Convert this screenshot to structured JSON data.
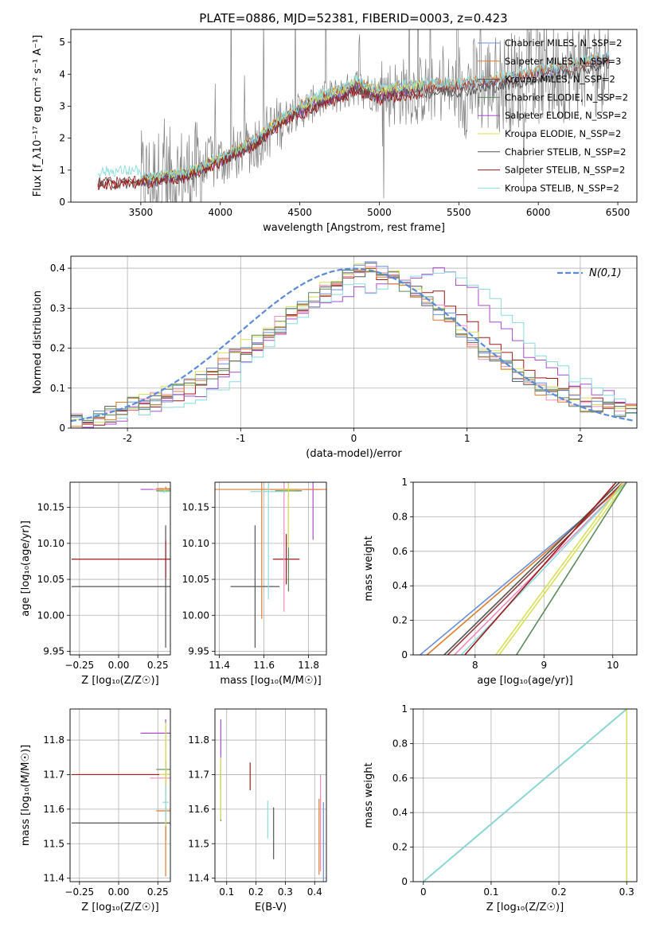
{
  "figure_title": "PLATE=0886, MJD=52381, FIBERID=0003, z=0.423",
  "colors": {
    "chabrier_miles": "#6a8fd8",
    "salpeter_miles": "#e07b2c",
    "kroupa_miles": "#8b3e3e",
    "chabrier_elodie": "#5a8a5a",
    "salpeter_elodie": "#a64dcc",
    "kroupa_elodie": "#d8e05a",
    "chabrier_stelib": "#555555",
    "salpeter_stelib": "#a01818",
    "kroupa_stelib": "#88dcdc",
    "pink": "#f08ac0",
    "data_gray": "#808080",
    "gaussian": "#5b8bd6"
  },
  "chart_data": [
    {
      "id": "spectrum",
      "type": "line",
      "xlabel": "wavelength [Angstrom, rest frame]",
      "ylabel": "Flux [f_λ10⁻¹⁷ erg cm⁻² s⁻¹ A⁻¹]",
      "xlim": [
        3060,
        6620
      ],
      "ylim": [
        0,
        5.4
      ],
      "xticks": [
        3500,
        4000,
        4500,
        5000,
        5500,
        6000,
        6500
      ],
      "yticks": [
        0,
        1,
        2,
        3,
        4,
        5
      ],
      "legend_position": "upper right",
      "legend": [
        "Chabrier MILES, N_SSP=2",
        "Salpeter MILES, N_SSP=3",
        "Kroupa MILES, N_SSP=2",
        "Chabrier ELODIE, N_SSP=2",
        "Salpeter ELODIE, N_SSP=2",
        "Kroupa ELODIE, N_SSP=2",
        "Chabrier STELIB, N_SSP=2",
        "Salpeter STELIB, N_SSP=2",
        "Kroupa STELIB, N_SSP=2"
      ],
      "model_trend": {
        "x": [
          3230,
          3500,
          3800,
          3900,
          4000,
          4200,
          4400,
          4600,
          4800,
          4850,
          5000,
          5200,
          5500,
          5800,
          6000,
          6200,
          6450
        ],
        "y": [
          0.6,
          0.65,
          0.85,
          1.1,
          1.3,
          1.8,
          2.6,
          3.1,
          3.45,
          3.65,
          3.35,
          3.5,
          3.55,
          3.75,
          3.95,
          4.1,
          4.45
        ]
      },
      "data_range": [
        3500,
        6450
      ]
    },
    {
      "id": "residuals",
      "type": "line",
      "xlabel": "(data-model)/error",
      "ylabel": "Normed distribution",
      "xlim": [
        -2.5,
        2.5
      ],
      "ylim": [
        0,
        0.43
      ],
      "xticks": [
        -2,
        -1,
        0,
        1,
        2
      ],
      "yticks": [
        0.0,
        0.1,
        0.2,
        0.3,
        0.4
      ],
      "legend": [
        "N(0,1)"
      ],
      "legend_position": "upper right",
      "bin_width": 0.1,
      "bin_start": -2.5,
      "histograms": [
        [
          0.02,
          0.02,
          0.03,
          0.04,
          0.05,
          0.06,
          0.06,
          0.07,
          0.08,
          0.09,
          0.11,
          0.12,
          0.14,
          0.16,
          0.18,
          0.2,
          0.22,
          0.24,
          0.26,
          0.28,
          0.3,
          0.32,
          0.34,
          0.36,
          0.38,
          0.39,
          0.4,
          0.39,
          0.38,
          0.36,
          0.34,
          0.32,
          0.29,
          0.27,
          0.24,
          0.22,
          0.19,
          0.17,
          0.15,
          0.13,
          0.11,
          0.1,
          0.09,
          0.08,
          0.07,
          0.06,
          0.05,
          0.05,
          0.04,
          0.04
        ],
        [
          0.01,
          0.02,
          0.02,
          0.03,
          0.03,
          0.04,
          0.05,
          0.06,
          0.07,
          0.08,
          0.09,
          0.1,
          0.12,
          0.14,
          0.16,
          0.18,
          0.2,
          0.23,
          0.25,
          0.28,
          0.3,
          0.32,
          0.34,
          0.36,
          0.37,
          0.38,
          0.39,
          0.38,
          0.37,
          0.36,
          0.35,
          0.34,
          0.33,
          0.31,
          0.29,
          0.26,
          0.23,
          0.21,
          0.19,
          0.17,
          0.15,
          0.13,
          0.11,
          0.1,
          0.09,
          0.08,
          0.07,
          0.06,
          0.05,
          0.05
        ],
        [
          0.01,
          0.01,
          0.02,
          0.02,
          0.03,
          0.04,
          0.05,
          0.05,
          0.06,
          0.07,
          0.08,
          0.09,
          0.11,
          0.12,
          0.14,
          0.16,
          0.19,
          0.22,
          0.24,
          0.27,
          0.29,
          0.31,
          0.32,
          0.33,
          0.34,
          0.34,
          0.34,
          0.35,
          0.36,
          0.37,
          0.38,
          0.39,
          0.4,
          0.39,
          0.37,
          0.34,
          0.31,
          0.28,
          0.25,
          0.22,
          0.19,
          0.17,
          0.15,
          0.13,
          0.12,
          0.1,
          0.09,
          0.08,
          0.07,
          0.06
        ],
        [
          0.01,
          0.01,
          0.02,
          0.03,
          0.03,
          0.04,
          0.04,
          0.05,
          0.05,
          0.06,
          0.07,
          0.08,
          0.09,
          0.1,
          0.12,
          0.15,
          0.18,
          0.21,
          0.24,
          0.27,
          0.29,
          0.31,
          0.33,
          0.34,
          0.35,
          0.35,
          0.35,
          0.36,
          0.37,
          0.38,
          0.39,
          0.39,
          0.4,
          0.39,
          0.38,
          0.36,
          0.34,
          0.31,
          0.28,
          0.25,
          0.22,
          0.19,
          0.17,
          0.15,
          0.13,
          0.11,
          0.1,
          0.09,
          0.08,
          0.07
        ],
        [
          0.02,
          0.02,
          0.03,
          0.04,
          0.05,
          0.06,
          0.07,
          0.08,
          0.1,
          0.11,
          0.12,
          0.14,
          0.16,
          0.18,
          0.2,
          0.22,
          0.24,
          0.26,
          0.28,
          0.3,
          0.32,
          0.34,
          0.36,
          0.38,
          0.39,
          0.4,
          0.41,
          0.4,
          0.38,
          0.36,
          0.34,
          0.32,
          0.3,
          0.28,
          0.25,
          0.23,
          0.2,
          0.18,
          0.16,
          0.14,
          0.12,
          0.11,
          0.1,
          0.09,
          0.08,
          0.07,
          0.06,
          0.05,
          0.05,
          0.04
        ]
      ]
    },
    {
      "id": "age_vs_Z",
      "type": "scatter",
      "xlabel": "Z [log₁₀(Z/Z☉)]",
      "ylabel": "age  [log₁₀(age/yr)]",
      "xlim": [
        -0.31,
        0.33
      ],
      "ylim": [
        9.945,
        10.185
      ],
      "xticks": [
        -0.25,
        0.0,
        0.25
      ],
      "xticklabels": [
        "−0.25",
        "0.00",
        "0.25"
      ],
      "yticks": [
        9.95,
        10.0,
        10.05,
        10.1,
        10.15
      ],
      "yticklabels": [
        "9.95",
        "10.00",
        "10.05",
        "10.10",
        "10.15"
      ],
      "errorbars": [
        {
          "x": 0.3,
          "y": 10.04,
          "xerr": 0.6,
          "yerr": 0.085,
          "c": "chabrier_stelib"
        },
        {
          "x": 0.3,
          "y": 10.078,
          "xerr": 0.6,
          "yerr": 0.026,
          "c": "salpeter_stelib"
        },
        {
          "x": 0.3,
          "y": 10.175,
          "xerr": 0.16,
          "yerr": 0.003,
          "c": "salpeter_elodie"
        },
        {
          "x": 0.3,
          "y": 10.175,
          "xerr": 0.08,
          "yerr": 0.003,
          "c": "pink"
        },
        {
          "x": 0.3,
          "y": 10.176,
          "xerr": 0.06,
          "yerr": 0.003,
          "c": "salpeter_miles"
        },
        {
          "x": 0.29,
          "y": 10.173,
          "xerr": 0.05,
          "yerr": 0.002,
          "c": "chabrier_elodie"
        },
        {
          "x": 0.295,
          "y": 10.174,
          "xerr": 0.04,
          "yerr": 0.002,
          "c": "kroupa_elodie"
        },
        {
          "x": 0.29,
          "y": 10.172,
          "xerr": 0.03,
          "yerr": 0.002,
          "c": "kroupa_stelib"
        }
      ]
    },
    {
      "id": "age_vs_mass",
      "type": "scatter",
      "xlabel": "mass [log₁₀(M/M☉)]",
      "ylabel": "",
      "xlim": [
        11.38,
        11.88
      ],
      "ylim": [
        9.945,
        10.185
      ],
      "xticks": [
        11.4,
        11.6,
        11.8
      ],
      "yticks": [
        9.95,
        10.0,
        10.05,
        10.1,
        10.15
      ],
      "yticklabels": [
        "9.95",
        "10.00",
        "10.05",
        "10.10",
        "10.15"
      ],
      "errorbars": [
        {
          "x": 11.56,
          "y": 10.04,
          "xerr": 0.11,
          "yerr": 0.085,
          "c": "chabrier_stelib"
        },
        {
          "x": 11.7,
          "y": 10.078,
          "xerr": 0.06,
          "yerr": 0.035,
          "c": "salpeter_stelib"
        },
        {
          "x": 11.82,
          "y": 10.175,
          "xerr": 0.04,
          "yerr": 0.07,
          "c": "salpeter_elodie"
        },
        {
          "x": 11.69,
          "y": 10.175,
          "xerr": 0.06,
          "yerr": 0.17,
          "c": "pink"
        },
        {
          "x": 11.59,
          "y": 10.175,
          "xerr": 0.4,
          "yerr": 0.18,
          "c": "salpeter_miles"
        },
        {
          "x": 11.71,
          "y": 10.173,
          "xerr": 0.06,
          "yerr": 0.14,
          "c": "chabrier_elodie"
        },
        {
          "x": 11.71,
          "y": 10.174,
          "xerr": 0.03,
          "yerr": 0.08,
          "c": "kroupa_elodie"
        },
        {
          "x": 11.62,
          "y": 10.172,
          "xerr": 0.08,
          "yerr": 0.15,
          "c": "kroupa_stelib"
        }
      ]
    },
    {
      "id": "mass_weight_vs_age",
      "type": "line",
      "xlabel": "age  [log₁₀(age/yr)]",
      "ylabel": "mass weight",
      "xlim": [
        7.1,
        10.35
      ],
      "ylim": [
        0,
        1
      ],
      "xticks": [
        8,
        9,
        10
      ],
      "yticks": [
        0.0,
        0.2,
        0.4,
        0.6,
        0.8,
        1.0
      ],
      "lines": [
        {
          "x0": 7.2,
          "x1": 10.2,
          "c": "chabrier_miles"
        },
        {
          "x0": 7.3,
          "x1": 10.2,
          "c": "salpeter_miles"
        },
        {
          "x0": 7.55,
          "x1": 10.1,
          "c": "chabrier_stelib"
        },
        {
          "x0": 7.6,
          "x1": 10.15,
          "c": "kroupa_miles"
        },
        {
          "x0": 7.7,
          "x1": 10.2,
          "c": "pink"
        },
        {
          "x0": 7.8,
          "x1": 10.2,
          "c": "kroupa_stelib"
        },
        {
          "x0": 7.85,
          "x1": 10.05,
          "c": "salpeter_stelib"
        },
        {
          "x0": 8.3,
          "x1": 10.15,
          "c": "kroupa_elodie"
        },
        {
          "x0": 8.35,
          "x1": 10.2,
          "c": "kroupa_elodie"
        },
        {
          "x0": 8.6,
          "x1": 10.2,
          "c": "chabrier_elodie"
        }
      ]
    },
    {
      "id": "mass_vs_Z",
      "type": "scatter",
      "xlabel": "Z [log₁₀(Z/Z☉)]",
      "ylabel": "mass [log₁₀(M/M☉)]",
      "xlim": [
        -0.31,
        0.33
      ],
      "ylim": [
        11.39,
        11.89
      ],
      "xticks": [
        -0.25,
        0.0,
        0.25
      ],
      "xticklabels": [
        "−0.25",
        "0.00",
        "0.25"
      ],
      "yticks": [
        11.4,
        11.5,
        11.6,
        11.7,
        11.8
      ],
      "errorbars": [
        {
          "x": 0.3,
          "y": 11.56,
          "xerr": 0.6,
          "yerr": 0.05,
          "c": "chabrier_stelib"
        },
        {
          "x": 0.3,
          "y": 11.7,
          "xerr": 0.6,
          "yerr": 0.04,
          "c": "salpeter_stelib"
        },
        {
          "x": 0.3,
          "y": 11.82,
          "xerr": 0.16,
          "yerr": 0.04,
          "c": "salpeter_elodie"
        },
        {
          "x": 0.3,
          "y": 11.69,
          "xerr": 0.1,
          "yerr": 0.04,
          "c": "pink"
        },
        {
          "x": 0.3,
          "y": 11.595,
          "xerr": 0.06,
          "yerr": 0.19,
          "c": "salpeter_miles"
        },
        {
          "x": 0.3,
          "y": 11.715,
          "xerr": 0.06,
          "yerr": 0.025,
          "c": "chabrier_elodie"
        },
        {
          "x": 0.3,
          "y": 11.7,
          "xerr": 0.04,
          "yerr": 0.15,
          "c": "kroupa_elodie"
        },
        {
          "x": 0.3,
          "y": 11.62,
          "xerr": 0.02,
          "yerr": 0.05,
          "c": "kroupa_stelib"
        }
      ]
    },
    {
      "id": "mass_vs_ebv",
      "type": "scatter",
      "xlabel": "E(B-V)",
      "ylabel": "",
      "xlim": [
        0.06,
        0.44
      ],
      "ylim": [
        11.39,
        11.89
      ],
      "xticks": [
        0.1,
        0.2,
        0.3,
        0.4
      ],
      "yticks": [
        11.4,
        11.5,
        11.6,
        11.7,
        11.8
      ],
      "errorbars": [
        {
          "x": 0.26,
          "y": 11.53,
          "xerr": 0,
          "yerr": 0.075,
          "c": "chabrier_stelib"
        },
        {
          "x": 0.18,
          "y": 11.695,
          "xerr": 0,
          "yerr": 0.04,
          "c": "salpeter_stelib"
        },
        {
          "x": 0.08,
          "y": 11.76,
          "xerr": 0,
          "yerr": 0.1,
          "c": "salpeter_elodie"
        },
        {
          "x": 0.42,
          "y": 11.56,
          "xerr": 0,
          "yerr": 0.14,
          "c": "pink"
        },
        {
          "x": 0.415,
          "y": 11.52,
          "xerr": 0,
          "yerr": 0.11,
          "c": "salpeter_miles"
        },
        {
          "x": 0.08,
          "y": 11.64,
          "xerr": 0,
          "yerr": 0.075,
          "c": "chabrier_elodie"
        },
        {
          "x": 0.08,
          "y": 11.66,
          "xerr": 0,
          "yerr": 0.09,
          "c": "kroupa_elodie"
        },
        {
          "x": 0.24,
          "y": 11.57,
          "xerr": 0,
          "yerr": 0.055,
          "c": "kroupa_stelib"
        },
        {
          "x": 0.43,
          "y": 11.5,
          "xerr": 0,
          "yerr": 0.12,
          "c": "chabrier_miles"
        }
      ]
    },
    {
      "id": "mass_weight_vs_Z",
      "type": "line",
      "xlabel": "Z [log₁₀(Z/Z☉)]",
      "ylabel": "mass weight",
      "xlim": [
        -0.015,
        0.315
      ],
      "ylim": [
        0,
        1
      ],
      "xticks": [
        0.0,
        0.1,
        0.2,
        0.3
      ],
      "yticks": [
        0.0,
        0.2,
        0.4,
        0.6,
        0.8,
        1.0
      ],
      "lines": [
        {
          "x0": 0.0,
          "x1": 0.3,
          "c": "chabrier_miles"
        },
        {
          "x0": 0.0,
          "x1": 0.3,
          "c": "chabrier_elodie"
        },
        {
          "x0": 0.0,
          "x1": 0.3,
          "c": "kroupa_stelib"
        },
        {
          "x0": 0.3,
          "x1": 0.3,
          "c": "kroupa_elodie"
        }
      ]
    }
  ]
}
